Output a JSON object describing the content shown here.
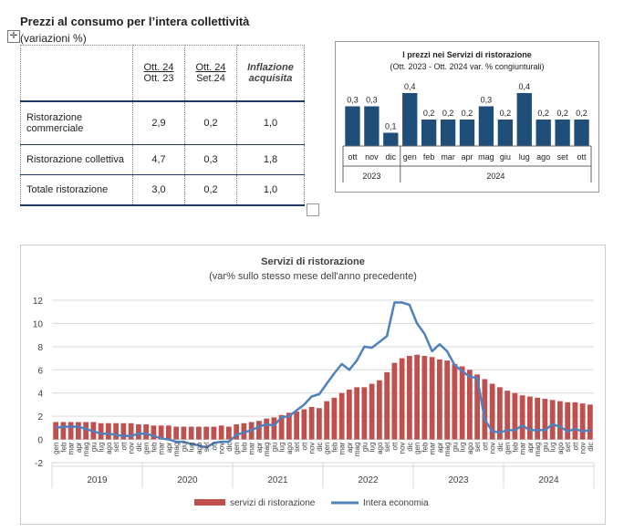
{
  "header": {
    "title": "Prezzi al consumo per l’intera collettività",
    "subtitle": "(variazioni %)"
  },
  "table": {
    "col1_line1": "Ott. 24",
    "col1_line2": "Ott. 23",
    "col2_line1": "Ott. 24",
    "col2_line2": "Set.24",
    "col3_line1": "Inflazione",
    "col3_line2": "acquisita",
    "rows": [
      {
        "label_line1": "Ristorazione",
        "label_line2": "commerciale",
        "v1": "2,9",
        "v2": "0,2",
        "v3": "1,0"
      },
      {
        "label_line1": "Ristorazione collettiva",
        "label_line2": "",
        "v1": "4,7",
        "v2": "0,3",
        "v3": "1,8"
      },
      {
        "label_line1": "Totale ristorazione",
        "label_line2": "",
        "v1": "3,0",
        "v2": "0,2",
        "v3": "1,0"
      }
    ]
  },
  "colors": {
    "small_bar": "#1f4e79",
    "big_bar": "#c0504d",
    "line": "#4f81bd",
    "axis": "#bfbfbf"
  },
  "chart_data": [
    {
      "type": "bar",
      "title": "I prezzi nei Servizi di ristorazione",
      "subtitle": "(Ott. 2023 - Ott. 2024 var. % congiunturali)",
      "categories": [
        "ott",
        "nov",
        "dic",
        "gen",
        "feb",
        "mar",
        "apr",
        "mag",
        "giu",
        "lug",
        "ago",
        "set",
        "ott"
      ],
      "values": [
        0.3,
        0.3,
        0.1,
        0.4,
        0.2,
        0.2,
        0.2,
        0.3,
        0.2,
        0.4,
        0.2,
        0.2,
        0.2
      ],
      "value_labels": [
        "0,3",
        "0,3",
        "0,1",
        "0,4",
        "0,2",
        "0,2",
        "0,2",
        "0,3",
        "0,2",
        "0,4",
        "0,2",
        "0,2",
        "0,2"
      ],
      "year_groups": [
        {
          "label": "2023",
          "count": 3
        },
        {
          "label": "2024",
          "count": 10
        }
      ],
      "ylim": [
        0,
        0.4
      ]
    },
    {
      "type": "bar+line",
      "title": "Servizi di ristorazione",
      "subtitle": "(var% sullo stesso mese dell'anno precedente)",
      "months": [
        "gen",
        "feb",
        "mar",
        "apr",
        "mag",
        "giu",
        "lug",
        "ago",
        "set",
        "ott",
        "nov",
        "dic"
      ],
      "years": [
        "2019",
        "2020",
        "2021",
        "2022",
        "2023",
        "2024"
      ],
      "ylim": [
        -2,
        12
      ],
      "yticks": [
        -2,
        0,
        2,
        4,
        6,
        8,
        10,
        12
      ],
      "legend": {
        "placement": "bottom"
      },
      "series": [
        {
          "name": "servizi di ristorazione",
          "kind": "bar",
          "values": [
            1.5,
            1.5,
            1.5,
            1.5,
            1.5,
            1.5,
            1.4,
            1.4,
            1.4,
            1.4,
            1.4,
            1.3,
            1.3,
            1.2,
            1.2,
            1.2,
            1.1,
            1.1,
            1.1,
            1.1,
            1.1,
            1.1,
            1.2,
            1.1,
            1.3,
            1.4,
            1.5,
            1.6,
            1.8,
            1.9,
            2.1,
            2.3,
            2.4,
            2.6,
            2.8,
            2.7,
            3.3,
            3.6,
            4.0,
            4.3,
            4.5,
            4.5,
            4.8,
            5.1,
            5.8,
            6.6,
            7.0,
            7.2,
            7.3,
            7.2,
            7.1,
            6.9,
            6.8,
            6.5,
            6.3,
            6.0,
            5.6,
            5.2,
            4.8,
            4.5,
            4.2,
            4.0,
            3.8,
            3.7,
            3.6,
            3.5,
            3.4,
            3.3,
            3.2,
            3.2,
            3.1,
            3.0
          ]
        },
        {
          "name": "Intera economia",
          "kind": "line",
          "values": [
            1.0,
            1.1,
            1.1,
            1.1,
            0.9,
            0.7,
            0.5,
            0.5,
            0.4,
            0.3,
            0.3,
            0.5,
            0.5,
            0.3,
            0.1,
            0.0,
            -0.2,
            -0.2,
            -0.4,
            -0.5,
            -0.7,
            -0.3,
            -0.2,
            -0.2,
            0.4,
            0.6,
            0.8,
            1.1,
            1.3,
            1.2,
            1.9,
            2.0,
            2.5,
            3.0,
            3.7,
            3.9,
            4.8,
            5.7,
            6.5,
            6.0,
            6.8,
            8.0,
            7.9,
            8.4,
            8.9,
            11.8,
            11.8,
            11.6,
            10.0,
            9.1,
            7.6,
            8.2,
            7.6,
            6.4,
            5.9,
            5.4,
            5.3,
            1.7,
            0.7,
            0.6,
            0.8,
            0.8,
            1.2,
            0.8,
            0.8,
            0.8,
            1.3,
            1.1,
            0.7,
            0.9,
            0.7,
            0.8
          ]
        }
      ]
    }
  ]
}
